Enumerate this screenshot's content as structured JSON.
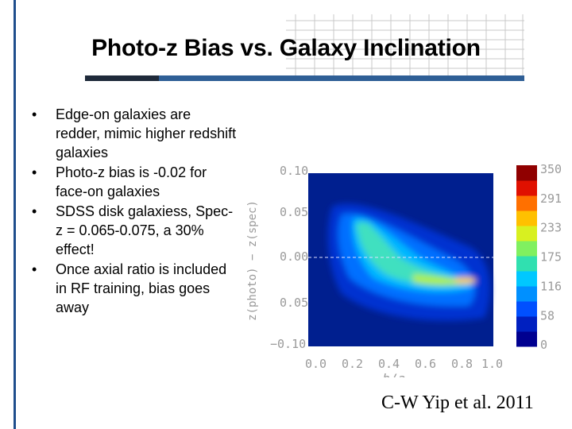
{
  "slide": {
    "title": "Photo-z Bias vs. Galaxy Inclination",
    "bullets": [
      "Edge-on galaxies  are redder, mimic higher redshift  galaxies",
      "Photo-z bias is -0.02 for face-on galaxies",
      "SDSS disk galaxiess, Spec-z = 0.065-0.075, a 30% effect!",
      "Once axial ratio is included in RF training, bias goes away"
    ],
    "bullet_glyph": "•",
    "citation": "C-W Yip et al. 2011"
  },
  "colors": {
    "accent_dark": "#1f2a3a",
    "accent_blue": "#2f5f96",
    "plot_background": "#001f8f"
  },
  "chart_data": {
    "type": "heatmap",
    "title": "",
    "xlabel": "b/a",
    "ylabel": "z(photo) − z(spec)",
    "xlim": [
      0.0,
      1.0
    ],
    "ylim": [
      -0.1,
      0.1
    ],
    "xticks": [
      "0.0",
      "0.2",
      "0.4",
      "0.6",
      "0.8",
      "1.0"
    ],
    "yticks": [
      "0.10",
      "0.05",
      "0.00",
      "0.05",
      "−0.10"
    ],
    "reference_line_y": 0.0,
    "colorbar": {
      "ticks": [
        "350",
        "291",
        "233",
        "175",
        "116",
        "58",
        "0"
      ],
      "range": [
        0,
        350
      ],
      "colors": [
        "#000090",
        "#0020c0",
        "#0050ff",
        "#0090ff",
        "#00c8ff",
        "#30e0b0",
        "#80f060",
        "#d8f020",
        "#ffc000",
        "#ff7000",
        "#e01000",
        "#900000"
      ]
    },
    "note": "density of galaxies; peak near b/a≈0.8, Δz≈-0.025"
  }
}
